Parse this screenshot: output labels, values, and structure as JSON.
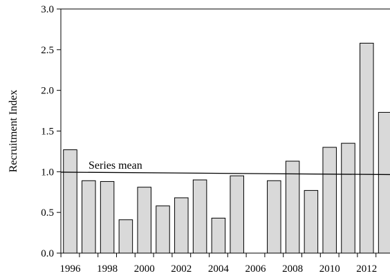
{
  "chart_data": {
    "type": "bar",
    "title": "",
    "xlabel": "",
    "ylabel": "Recruitment Index",
    "ylim": [
      0,
      3.0
    ],
    "xlim": [
      1996,
      2013
    ],
    "grid": false,
    "legend": "none",
    "yticks": [
      "0.0",
      "0.5",
      "1.0",
      "1.5",
      "2.0",
      "2.5",
      "3.0"
    ],
    "xticks": [
      "1996",
      "1998",
      "2000",
      "2002",
      "2004",
      "2006",
      "2008",
      "2010",
      "2012"
    ],
    "categories": [
      1996,
      1997,
      1998,
      1999,
      2000,
      2001,
      2002,
      2003,
      2004,
      2005,
      2006,
      2007,
      2008,
      2009,
      2010,
      2011,
      2012,
      2013
    ],
    "values": [
      1.27,
      0.89,
      0.88,
      0.41,
      0.81,
      0.58,
      0.68,
      0.9,
      0.43,
      0.95,
      null,
      0.89,
      1.13,
      0.77,
      1.3,
      1.35,
      2.58,
      1.73
    ],
    "bar_color": "#d9d9d9",
    "bar_edge_color": "#000000",
    "mean_line": {
      "label": "Series mean",
      "y_start": 0.995,
      "y_end": 0.965
    }
  }
}
